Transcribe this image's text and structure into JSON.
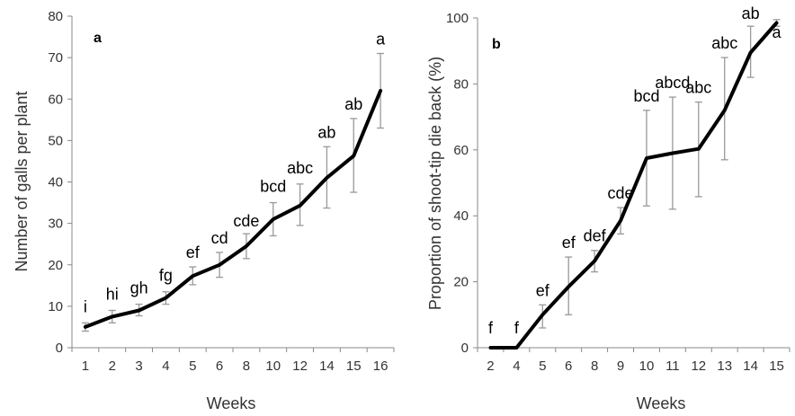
{
  "chart_data": [
    {
      "type": "line",
      "panel_label": "a",
      "categories": [
        "1",
        "2",
        "3",
        "4",
        "5",
        "6",
        "8",
        "10",
        "12",
        "14",
        "15",
        "16"
      ],
      "values": [
        5,
        7.5,
        9,
        12,
        17.3,
        20,
        24.5,
        31,
        34.3,
        41,
        46.3,
        62
      ],
      "error_high": [
        6,
        9,
        10.5,
        13.5,
        19.5,
        23,
        27.5,
        35,
        39.5,
        48.5,
        55.3,
        71
      ],
      "error_low": [
        4,
        6,
        7.7,
        10.5,
        15.2,
        17,
        21.5,
        27,
        29.5,
        33.7,
        37.5,
        53
      ],
      "significance": [
        "i",
        "hi",
        "gh",
        "fg",
        "ef",
        "cd",
        "cde",
        "bcd",
        "abc",
        "ab",
        "ab",
        "a"
      ],
      "xlabel": "Weeks",
      "ylabel": "Number of galls per plant",
      "ylim": [
        0,
        80
      ],
      "yticks": [
        "0",
        "10",
        "20",
        "30",
        "40",
        "50",
        "60",
        "70",
        "80"
      ],
      "grid": false,
      "line_color": "#000000",
      "error_color": "#999999"
    },
    {
      "type": "line",
      "panel_label": "b",
      "categories": [
        "2",
        "4",
        "5",
        "6",
        "8",
        "9",
        "10",
        "11",
        "12",
        "13",
        "14",
        "15"
      ],
      "values": [
        0,
        0,
        10,
        18.5,
        26.3,
        38.5,
        57.5,
        59,
        60.3,
        72,
        89.5,
        98.5
      ],
      "error_high": [
        0,
        0,
        13,
        27.5,
        29.5,
        42.5,
        72,
        76,
        74.5,
        88,
        97.5,
        99.5
      ],
      "error_low": [
        0,
        0,
        6,
        10,
        23,
        34.5,
        43,
        42,
        45.8,
        57,
        82,
        97.5
      ],
      "significance": [
        "f",
        "f",
        "ef",
        "ef",
        "def",
        "cde",
        "bcd",
        "abcd",
        "abc",
        "abc",
        "ab",
        "a"
      ],
      "xlabel": "Weeks",
      "ylabel": "Proportion of shoot-tip die back (%)",
      "ylim": [
        0,
        100
      ],
      "yticks": [
        "0",
        "20",
        "40",
        "60",
        "80",
        "100"
      ],
      "grid": false,
      "line_color": "#000000",
      "error_color": "#999999"
    }
  ]
}
